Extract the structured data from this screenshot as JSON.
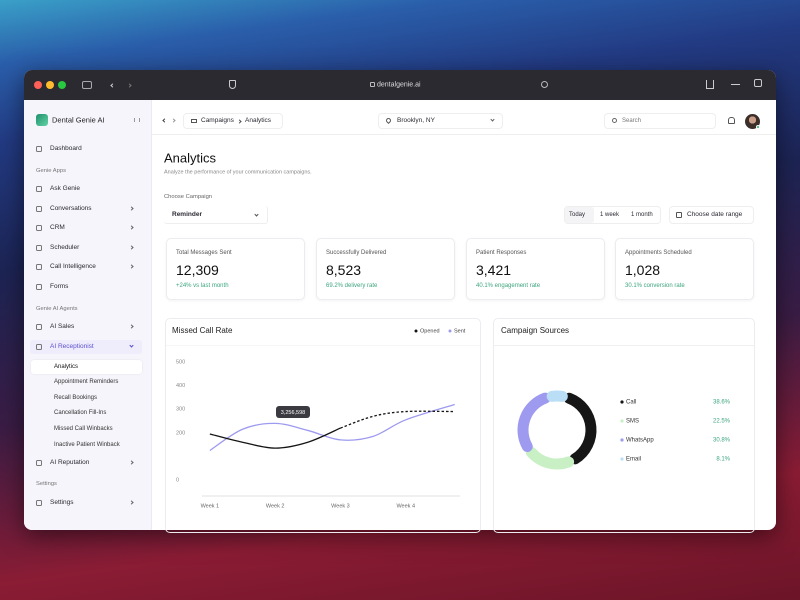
{
  "browser": {
    "url": "dentalgenie.ai"
  },
  "sidebar": {
    "brand": "Dental Genie AI",
    "dashboard": "Dashboard",
    "sections": [
      {
        "title": "Genie Apps",
        "items": [
          "Ask Genie",
          "Conversations",
          "CRM",
          "Scheduler",
          "Call Intelligence",
          "Forms"
        ]
      },
      {
        "title": "Genie AI Agents",
        "items": [
          "AI Sales",
          "AI Receptionist",
          "AI Reputation"
        ],
        "receptionist_subitems": [
          "Analytics",
          "Appointment Reminders",
          "Recall Bookings",
          "Cancellation Fill-Ins",
          "Missed Call Winbacks",
          "Inactive Patient Winback"
        ]
      },
      {
        "title": "Settings",
        "items": [
          "Settings"
        ]
      }
    ]
  },
  "topbar": {
    "breadcrumb": [
      "Campaigns",
      "Analytics"
    ],
    "location": "Brooklyn, NY",
    "search": "Search"
  },
  "header": {
    "title": "Analytics",
    "subtitle": "Analyze the performance of your communication campaigns."
  },
  "filters": {
    "campaign_label": "Choose Campaign",
    "campaign": "Reminder",
    "ranges": [
      "Today",
      "1 week",
      "1 month"
    ],
    "date_range": "Choose date range"
  },
  "stats": [
    {
      "label": "Total Messages Sent",
      "value": "12,309",
      "note": "+24% vs last month"
    },
    {
      "label": "Successfully Delivered",
      "value": "8,523",
      "note": "69.2% delivery rate"
    },
    {
      "label": "Patient Responses",
      "value": "3,421",
      "note": "40.1% engagement rate"
    },
    {
      "label": "Appointments Scheduled",
      "value": "1,028",
      "note": "30.1% conversion rate"
    }
  ],
  "chart_data": [
    {
      "type": "line",
      "title": "Missed Call Rate",
      "x": [
        1,
        1.5,
        2,
        2.5,
        3,
        3.5,
        4,
        4.75
      ],
      "xlim": [
        0.88,
        4.8
      ],
      "xticks": [
        {
          "value": 1,
          "label": "Week 1"
        },
        {
          "value": 2,
          "label": "Week 2"
        },
        {
          "value": 3,
          "label": "Week 3"
        },
        {
          "value": 4,
          "label": "Week 4"
        }
      ],
      "ylim": [
        0,
        500
      ],
      "yticks": [
        0,
        200,
        300,
        400,
        500
      ],
      "grid": false,
      "series": [
        {
          "name": "Opened",
          "color": "#141414",
          "values": [
            195,
            160,
            135,
            160,
            220,
            270,
            290,
            290
          ],
          "dashed_from_x": 3
        },
        {
          "name": "Sent",
          "color": "#9d9af0",
          "values": [
            125,
            215,
            240,
            210,
            170,
            185,
            255,
            320
          ]
        }
      ],
      "annotation": "3,256,598"
    },
    {
      "type": "pie",
      "title": "Campaign Sources",
      "donut": true,
      "categories": [
        "Call",
        "SMS",
        "WhatsApp",
        "Email"
      ],
      "values": [
        38.6,
        22.5,
        30.8,
        8.1
      ],
      "value_labels": [
        "38.6%",
        "22.5%",
        "30.8%",
        "8.1%"
      ],
      "colors": [
        "#161616",
        "#c8f0c4",
        "#9d9af0",
        "#b9def5"
      ]
    }
  ]
}
